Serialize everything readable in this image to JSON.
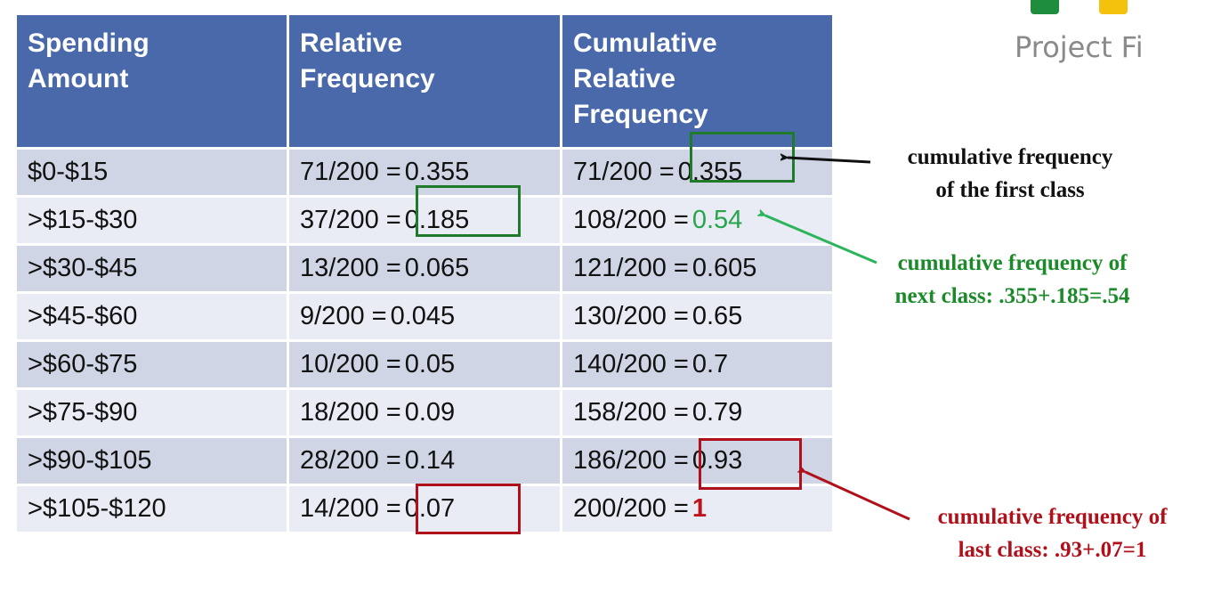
{
  "logo": {
    "text": "Project Fi",
    "colors": {
      "green": "#1e8e3e",
      "yellow": "#f4c20d"
    }
  },
  "table": {
    "headers": [
      [
        "Spending",
        "Amount"
      ],
      [
        "Relative",
        "Frequency"
      ],
      [
        "Cumulative",
        "Relative",
        "Frequency"
      ]
    ],
    "rows": [
      {
        "amount": "$0-$15",
        "rel_fraction": "71/200 =",
        "rel_value": "0.355",
        "cum_fraction": "71/200 =",
        "cum_value": "0.355"
      },
      {
        "amount": ">$15-$30",
        "rel_fraction": "37/200 =",
        "rel_value": "0.185",
        "cum_fraction": "108/200 =",
        "cum_value": "0.54"
      },
      {
        "amount": ">$30-$45",
        "rel_fraction": "13/200 =",
        "rel_value": "0.065",
        "cum_fraction": "121/200 =",
        "cum_value": "0.605"
      },
      {
        "amount": ">$45-$60",
        "rel_fraction": "9/200 =",
        "rel_value": "0.045",
        "cum_fraction": "130/200 =",
        "cum_value": "0.65"
      },
      {
        "amount": ">$60-$75",
        "rel_fraction": "10/200 =",
        "rel_value": "0.05",
        "cum_fraction": "140/200 =",
        "cum_value": "0.7"
      },
      {
        "amount": ">$75-$90",
        "rel_fraction": "18/200 =",
        "rel_value": "0.09",
        "cum_fraction": "158/200 =",
        "cum_value": "0.79"
      },
      {
        "amount": ">$90-$105",
        "rel_fraction": "28/200 =",
        "rel_value": "0.14",
        "cum_fraction": "186/200 =",
        "cum_value": "0.93"
      },
      {
        "amount": ">$105-$120",
        "rel_fraction": "14/200 =",
        "rel_value": "0.07",
        "cum_fraction": "200/200 =",
        "cum_value": "1"
      }
    ]
  },
  "annotations": {
    "first": {
      "lines": [
        "cumulative frequency",
        "of the first class"
      ],
      "color": "#111111"
    },
    "next": {
      "lines": [
        "cumulative frequency of",
        "next class: .355+.185=.54"
      ],
      "color": "#1c8a2b"
    },
    "last": {
      "lines": [
        "cumulative frequency of",
        "last class: .93+.07=1"
      ],
      "color": "#b0101a"
    }
  }
}
